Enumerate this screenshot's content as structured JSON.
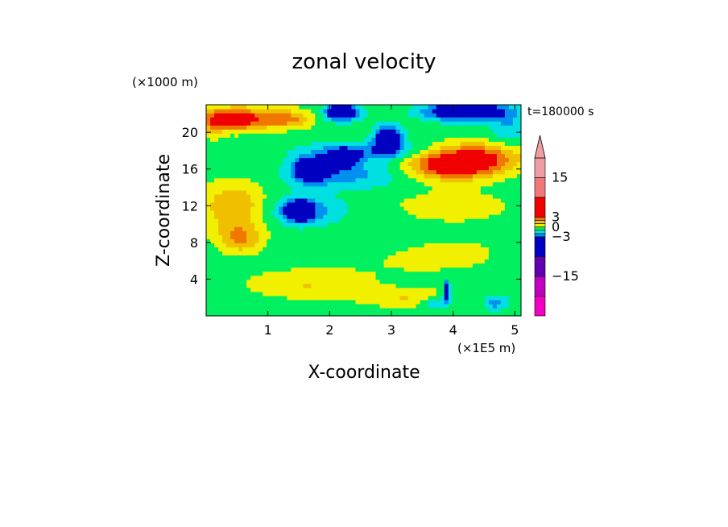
{
  "chart_data": {
    "type": "heatmap",
    "title": "zonal velocity",
    "xlabel": "X-coordinate",
    "ylabel": "Z-coordinate",
    "x_unit": "(×1E5 m)",
    "y_unit": "(×1000 m)",
    "time_label": "t=180000 s",
    "xlim": [
      0,
      5.1
    ],
    "ylim": [
      0,
      23
    ],
    "x_ticks": [
      "1",
      "2",
      "3",
      "4",
      "5"
    ],
    "x_tick_values": [
      1,
      2,
      3,
      4,
      5
    ],
    "y_ticks": [
      "4",
      "8",
      "12",
      "16",
      "20"
    ],
    "y_tick_values": [
      4,
      8,
      12,
      16,
      20
    ],
    "colorbar": {
      "labels": [
        "15",
        "3",
        "0",
        "−3",
        "−15"
      ],
      "label_values": [
        15,
        3,
        0,
        -3,
        -15
      ],
      "levels_top_to_bottom": [
        {
          "min": 15,
          "max": 21,
          "color": "#F09CA4"
        },
        {
          "min": 9,
          "max": 15,
          "color": "#F07878"
        },
        {
          "min": 3,
          "max": 9,
          "color": "#F00000"
        },
        {
          "min": 2,
          "max": 3,
          "color": "#F07800"
        },
        {
          "min": 1,
          "max": 2,
          "color": "#F0C000"
        },
        {
          "min": 0,
          "max": 1,
          "color": "#F0F000"
        },
        {
          "min": -1,
          "max": 0,
          "color": "#00F060"
        },
        {
          "min": -2,
          "max": -1,
          "color": "#00E0E0"
        },
        {
          "min": -3,
          "max": -2,
          "color": "#0090F0"
        },
        {
          "min": -9,
          "max": -3,
          "color": "#0000C0"
        },
        {
          "min": -15,
          "max": -9,
          "color": "#6000B0"
        },
        {
          "min": -21,
          "max": -15,
          "color": "#C000C0"
        },
        {
          "min": -27,
          "max": -21,
          "color": "#F000C0"
        }
      ]
    },
    "features": [
      {
        "x": 0.5,
        "z": 21.5,
        "value": 5,
        "rx": 0.45,
        "rz": 1.2
      },
      {
        "x": 1.3,
        "z": 21.5,
        "value": 3,
        "rx": 0.4,
        "rz": 1.0
      },
      {
        "x": 0.45,
        "z": 12.0,
        "value": 2.5,
        "rx": 0.5,
        "rz": 2.6
      },
      {
        "x": 0.55,
        "z": 8.5,
        "value": 2.5,
        "rx": 0.35,
        "rz": 1.6
      },
      {
        "x": 2.2,
        "z": 15.5,
        "value": -2,
        "rx": 0.9,
        "rz": 1.5
      },
      {
        "x": 1.7,
        "z": 16.0,
        "value": -6,
        "rx": 0.25,
        "rz": 1.2
      },
      {
        "x": 2.2,
        "z": 17.2,
        "value": -5,
        "rx": 0.25,
        "rz": 0.9
      },
      {
        "x": 2.95,
        "z": 19.3,
        "value": -6,
        "rx": 0.2,
        "rz": 1.3
      },
      {
        "x": 1.5,
        "z": 11.5,
        "value": -6,
        "rx": 0.2,
        "rz": 1.0
      },
      {
        "x": 1.6,
        "z": 11.5,
        "value": -2,
        "rx": 0.6,
        "rz": 1.6
      },
      {
        "x": 2.2,
        "z": 22.2,
        "value": -6,
        "rx": 0.25,
        "rz": 0.8
      },
      {
        "x": 4.2,
        "z": 22.3,
        "value": -6,
        "rx": 0.6,
        "rz": 0.9
      },
      {
        "x": 4.0,
        "z": 16.5,
        "value": 5,
        "rx": 0.7,
        "rz": 1.6
      },
      {
        "x": 4.5,
        "z": 17.5,
        "value": 2.5,
        "rx": 0.7,
        "rz": 1.6
      },
      {
        "x": 4.0,
        "z": 12.0,
        "value": 1.5,
        "rx": 0.8,
        "rz": 1.5
      },
      {
        "x": 3.2,
        "z": 6.0,
        "value": 0.5,
        "rx": 1.2,
        "rz": 2.5
      },
      {
        "x": 4.2,
        "z": 7.0,
        "value": 0.5,
        "rx": 0.8,
        "rz": 2.0
      },
      {
        "x": 1.6,
        "z": 3.5,
        "value": 1.5,
        "rx": 0.9,
        "rz": 1.5
      },
      {
        "x": 3.3,
        "z": 2.0,
        "value": 1.5,
        "rx": 0.8,
        "rz": 1.0
      },
      {
        "x": 3.9,
        "z": 2.8,
        "value": -6,
        "rx": 0.05,
        "rz": 0.9
      },
      {
        "x": 3.75,
        "z": 1.5,
        "value": -2,
        "rx": 0.25,
        "rz": 0.8
      },
      {
        "x": 4.7,
        "z": 1.5,
        "value": -2,
        "rx": 0.2,
        "rz": 0.8
      },
      {
        "x": 2.6,
        "z": 18.0,
        "value": -2,
        "rx": 1.0,
        "rz": 1.0
      },
      {
        "x": 0.1,
        "z": 21.0,
        "value": 2,
        "rx": 0.15,
        "rz": 1.5
      },
      {
        "x": 4.9,
        "z": 20.5,
        "value": -1.5,
        "rx": 0.3,
        "rz": 2.0
      }
    ]
  }
}
